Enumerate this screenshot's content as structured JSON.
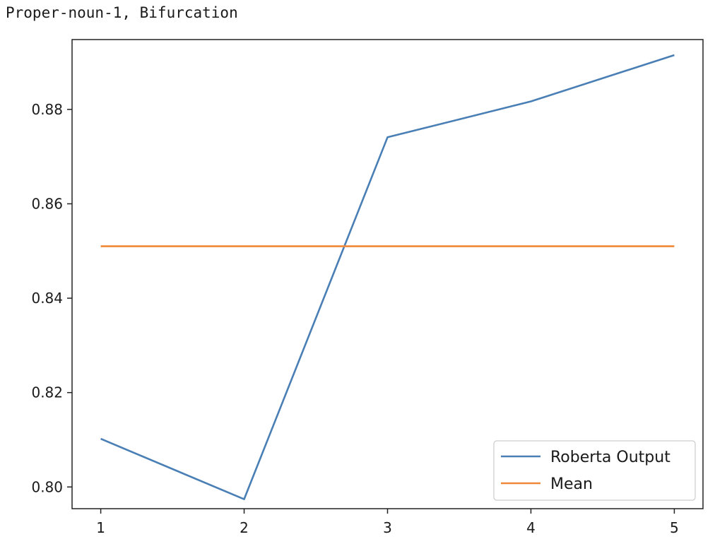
{
  "header": {
    "text": "Proper-noun-1, Bifurcation"
  },
  "chart_data": {
    "type": "line",
    "title": "",
    "xlabel": "",
    "ylabel": "",
    "x": [
      1,
      2,
      3,
      4,
      5
    ],
    "xticks": [
      "1",
      "2",
      "3",
      "4",
      "5"
    ],
    "yticks": [
      "0.80",
      "0.82",
      "0.84",
      "0.86",
      "0.88"
    ],
    "xlim": [
      0.8,
      5.2
    ],
    "ylim": [
      0.7954,
      0.8948
    ],
    "grid": false,
    "legend_position": "bottom-right",
    "series": [
      {
        "name": "Roberta Output",
        "color": "#4a7fb5",
        "values": [
          0.8102,
          0.7974,
          0.8741,
          0.8817,
          0.8915
        ]
      },
      {
        "name": "Mean",
        "color": "#f0883a",
        "values": [
          0.851,
          0.851,
          0.851,
          0.851,
          0.851
        ]
      }
    ]
  }
}
